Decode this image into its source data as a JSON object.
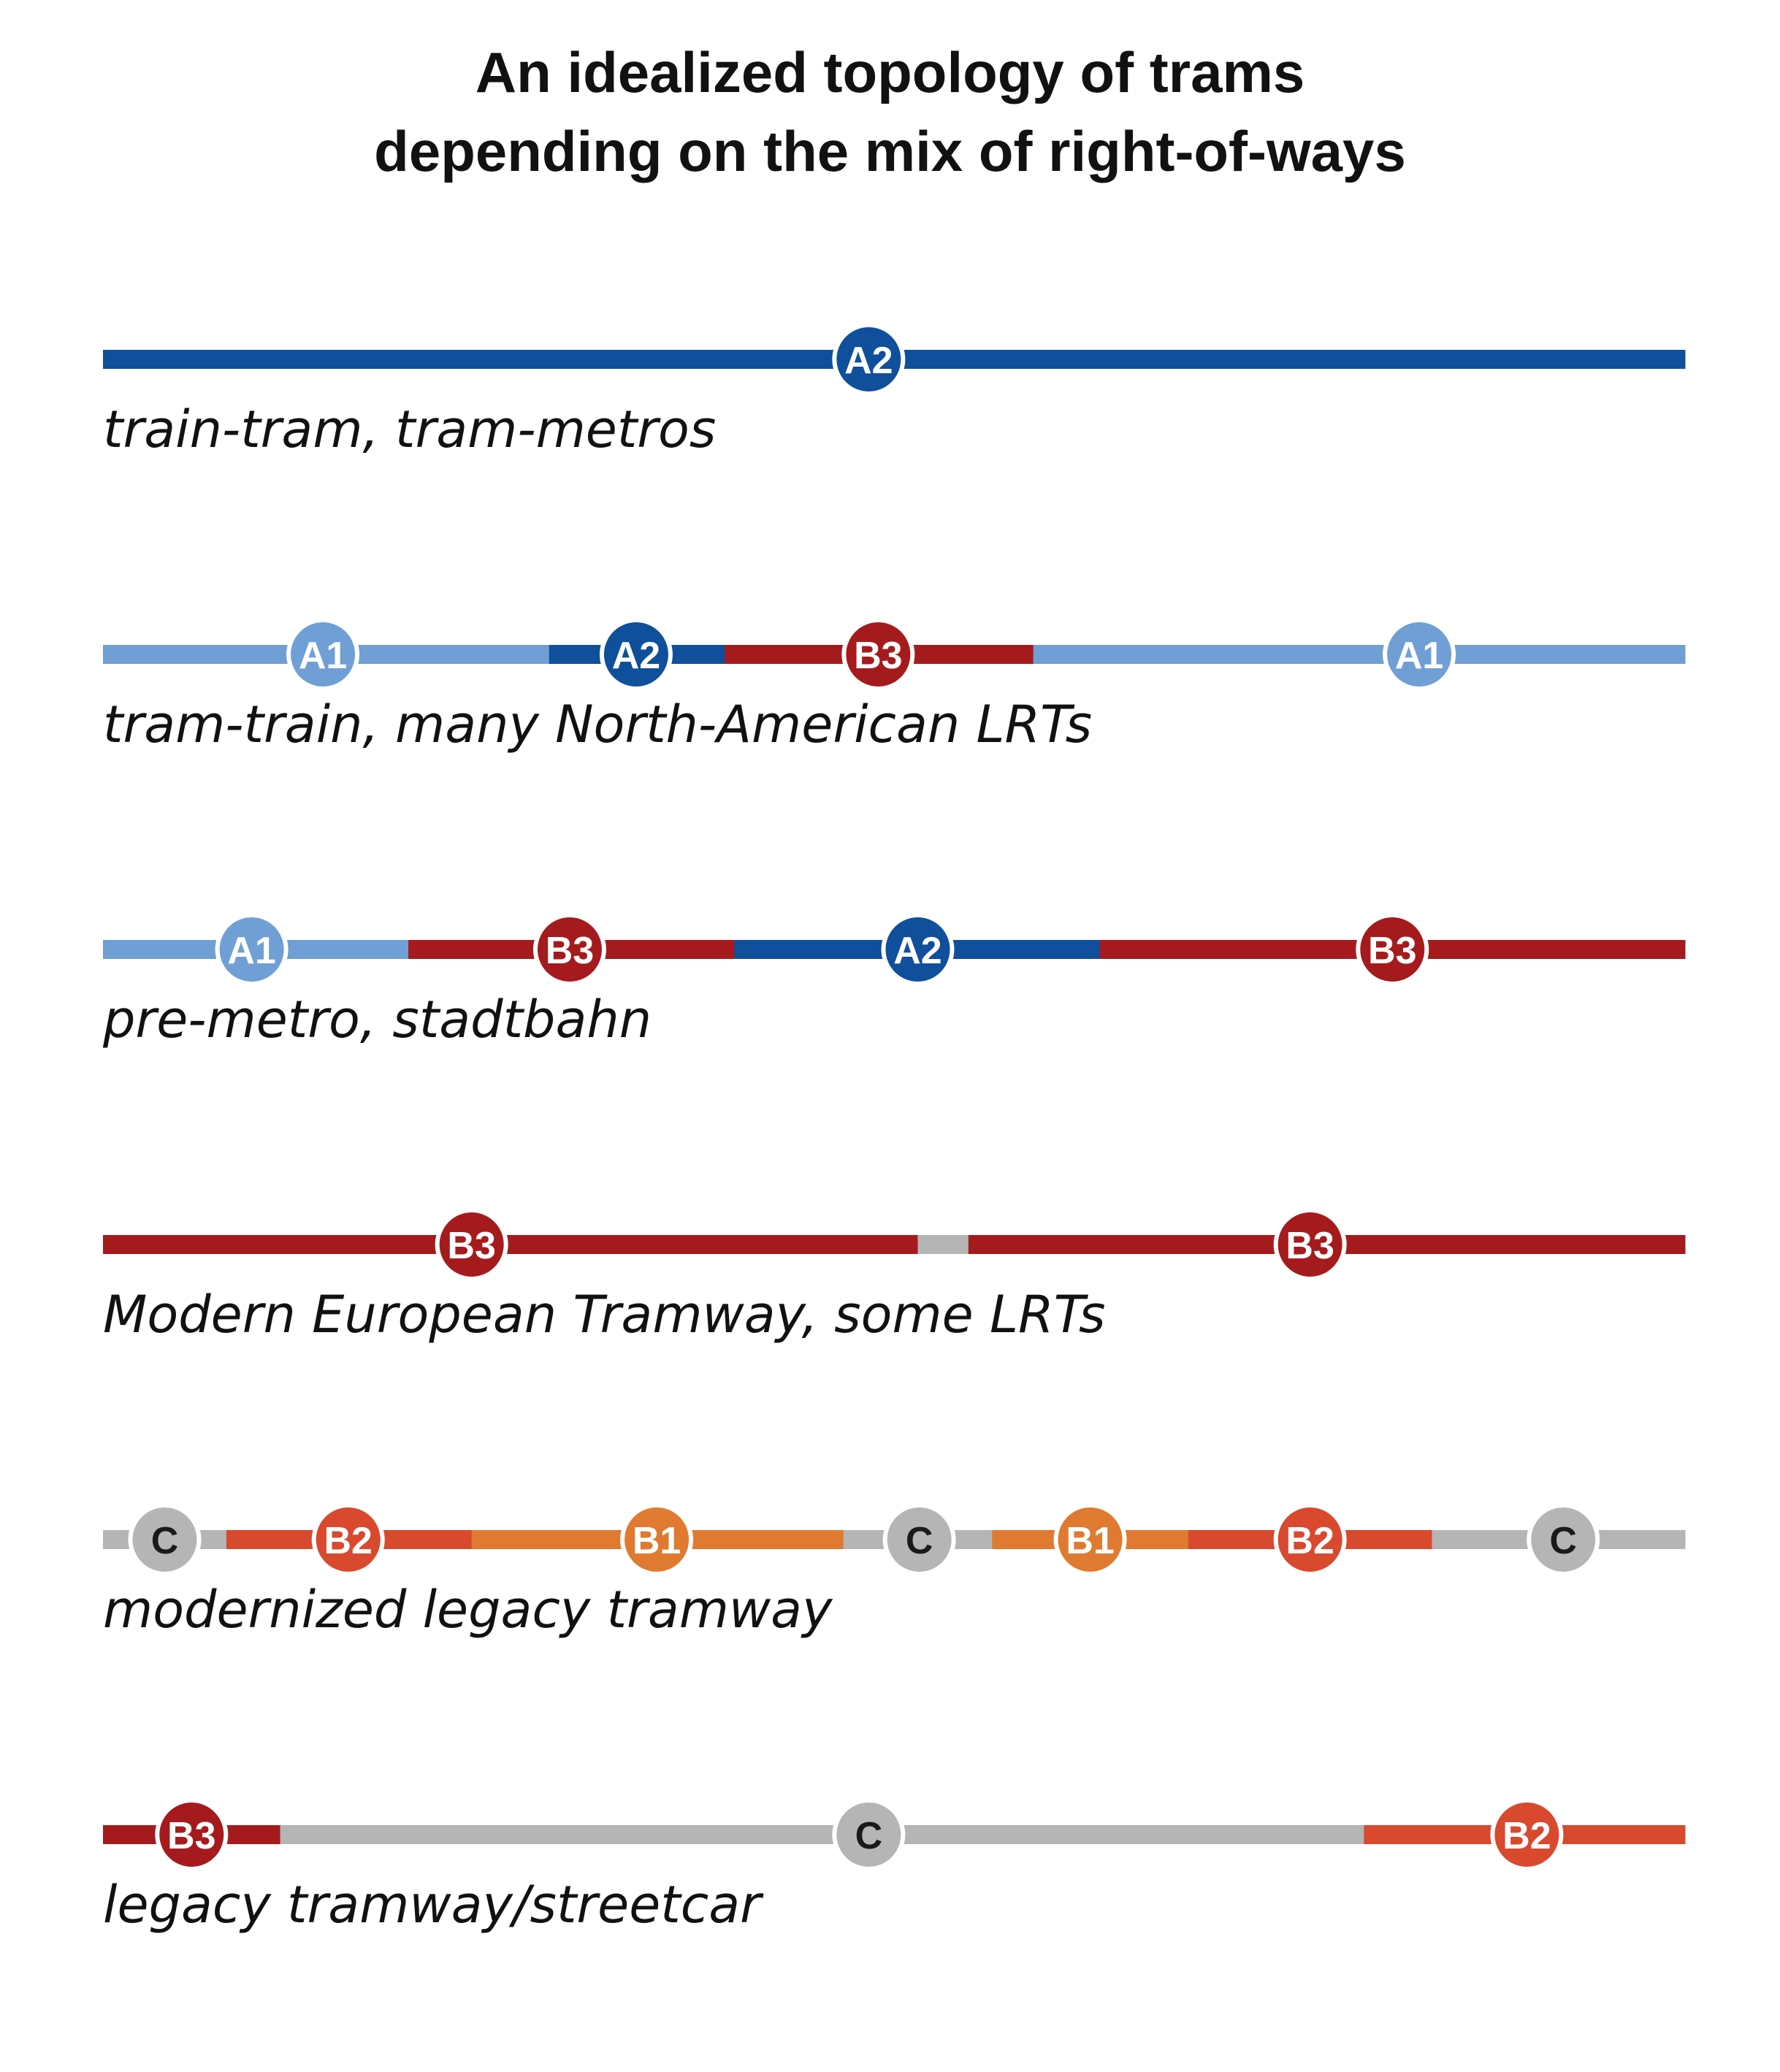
{
  "title": {
    "line1": "An idealized topology of trams",
    "line2": "depending on the mix of right-of-ways"
  },
  "colors": {
    "A1": "#6f9fd5",
    "A2": "#0f4f9b",
    "B1": "#e07a30",
    "B2": "#d9492e",
    "B3": "#a51b1d",
    "C": "#b5b5b5"
  },
  "rows": [
    {
      "caption": "train-tram, tram-metros",
      "segments": [
        {
          "type": "A2",
          "from": 0.0,
          "to": 1.0
        }
      ],
      "stations": [
        {
          "label": "A2",
          "type": "A2",
          "at": 0.484
        }
      ]
    },
    {
      "caption": "tram-train, many North-American LRTs",
      "segments": [
        {
          "type": "A1",
          "from": 0.0,
          "to": 0.282
        },
        {
          "type": "A2",
          "from": 0.282,
          "to": 0.393
        },
        {
          "type": "B3",
          "from": 0.393,
          "to": 0.588
        },
        {
          "type": "A1",
          "from": 0.588,
          "to": 1.0
        }
      ],
      "stations": [
        {
          "label": "A1",
          "type": "A1",
          "at": 0.139
        },
        {
          "label": "A2",
          "type": "A2",
          "at": 0.337
        },
        {
          "label": "B3",
          "type": "B3",
          "at": 0.49
        },
        {
          "label": "A1",
          "type": "A1",
          "at": 0.832
        }
      ]
    },
    {
      "caption": "pre-metro, stadtbahn",
      "segments": [
        {
          "type": "A1",
          "from": 0.0,
          "to": 0.193
        },
        {
          "type": "B3",
          "from": 0.193,
          "to": 0.399
        },
        {
          "type": "A2",
          "from": 0.399,
          "to": 0.63
        },
        {
          "type": "B3",
          "from": 0.63,
          "to": 1.0
        }
      ],
      "stations": [
        {
          "label": "A1",
          "type": "A1",
          "at": 0.094
        },
        {
          "label": "B3",
          "type": "B3",
          "at": 0.295
        },
        {
          "label": "A2",
          "type": "A2",
          "at": 0.515
        },
        {
          "label": "B3",
          "type": "B3",
          "at": 0.815
        }
      ]
    },
    {
      "caption": "Modern European Tramway, some LRTs",
      "segments": [
        {
          "type": "B3",
          "from": 0.0,
          "to": 0.515
        },
        {
          "type": "C",
          "from": 0.515,
          "to": 0.547
        },
        {
          "type": "B3",
          "from": 0.547,
          "to": 1.0
        }
      ],
      "stations": [
        {
          "label": "B3",
          "type": "B3",
          "at": 0.233
        },
        {
          "label": "B3",
          "type": "B3",
          "at": 0.763
        }
      ]
    },
    {
      "caption": "modernized legacy tramway",
      "segments": [
        {
          "type": "C",
          "from": 0.0,
          "to": 0.078
        },
        {
          "type": "B2",
          "from": 0.078,
          "to": 0.233
        },
        {
          "type": "B1",
          "from": 0.233,
          "to": 0.468
        },
        {
          "type": "C",
          "from": 0.468,
          "to": 0.562
        },
        {
          "type": "B1",
          "from": 0.562,
          "to": 0.686
        },
        {
          "type": "B2",
          "from": 0.686,
          "to": 0.84
        },
        {
          "type": "C",
          "from": 0.84,
          "to": 1.0
        }
      ],
      "stations": [
        {
          "label": "C",
          "type": "C",
          "at": 0.039
        },
        {
          "label": "B2",
          "type": "B2",
          "at": 0.155
        },
        {
          "label": "B1",
          "type": "B1",
          "at": 0.35
        },
        {
          "label": "C",
          "type": "C",
          "at": 0.516
        },
        {
          "label": "B1",
          "type": "B1",
          "at": 0.624
        },
        {
          "label": "B2",
          "type": "B2",
          "at": 0.763
        },
        {
          "label": "C",
          "type": "C",
          "at": 0.923
        }
      ]
    },
    {
      "caption": "legacy tramway/streetcar",
      "segments": [
        {
          "type": "B3",
          "from": 0.0,
          "to": 0.112
        },
        {
          "type": "C",
          "from": 0.112,
          "to": 0.797
        },
        {
          "type": "B2",
          "from": 0.797,
          "to": 1.0
        }
      ],
      "stations": [
        {
          "label": "B3",
          "type": "B3",
          "at": 0.056
        },
        {
          "label": "C",
          "type": "C",
          "at": 0.484
        },
        {
          "label": "B2",
          "type": "B2",
          "at": 0.9
        }
      ]
    }
  ]
}
